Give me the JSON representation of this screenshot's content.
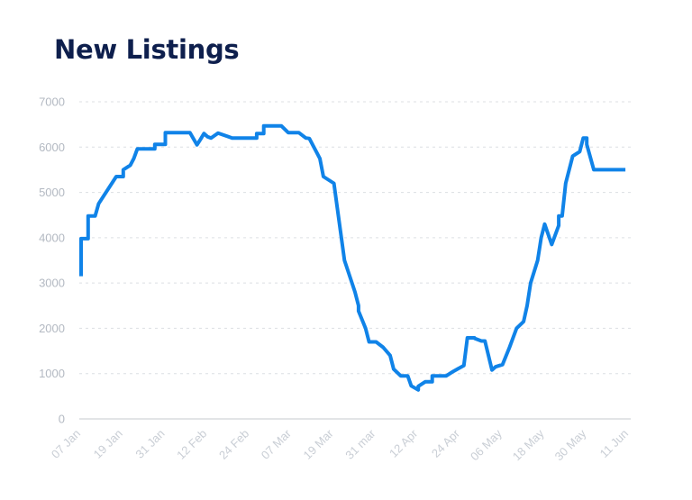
{
  "colors": {
    "line": "#1083e8",
    "grid": "#dcdfe3",
    "axis": "#c4c8ce",
    "title": "#0e1f4d",
    "tick_label": "#b3b9c2"
  },
  "chart_data": {
    "type": "line",
    "title": "New Listings",
    "xlabel": "",
    "ylabel": "",
    "ylim": [
      0,
      7000
    ],
    "yticks": [
      0,
      1000,
      2000,
      3000,
      4000,
      5000,
      6000,
      7000
    ],
    "grid": true,
    "legend": "none",
    "x_tick_labels": [
      "07 Jan",
      "19 Jan",
      "31 Jan",
      "12 Feb",
      "24 Feb",
      "07 Mar",
      "19 Mar",
      "31 mar",
      "12 Apr",
      "24 Apr",
      "06 May",
      "18 May",
      "30 May",
      "11 Jun"
    ],
    "series": [
      {
        "x": [
          "2024-01-07",
          "2024-01-07",
          "2024-01-09",
          "2024-01-09",
          "2024-01-11",
          "2024-01-12",
          "2024-01-17",
          "2024-01-19",
          "2024-01-19",
          "2024-01-21",
          "2024-01-22",
          "2024-01-23",
          "2024-01-28",
          "2024-01-28",
          "2024-01-29",
          "2024-01-31",
          "2024-01-31",
          "2024-02-07",
          "2024-02-09",
          "2024-02-10",
          "2024-02-11",
          "2024-02-12",
          "2024-02-13",
          "2024-02-15",
          "2024-02-19",
          "2024-02-26",
          "2024-02-26",
          "2024-02-28",
          "2024-02-28",
          "2024-03-04",
          "2024-03-06",
          "2024-03-09",
          "2024-03-11",
          "2024-03-12",
          "2024-03-15",
          "2024-03-16",
          "2024-03-19",
          "2024-03-22",
          "2024-03-25",
          "2024-03-26",
          "2024-03-26",
          "2024-03-28",
          "2024-03-29",
          "2024-03-31",
          "2024-04-02",
          "2024-04-04",
          "2024-04-05",
          "2024-04-07",
          "2024-04-09",
          "2024-04-10",
          "2024-04-12",
          "2024-04-12",
          "2024-04-14",
          "2024-04-16",
          "2024-04-16",
          "2024-04-17",
          "2024-04-17",
          "2024-04-20",
          "2024-04-22",
          "2024-04-25",
          "2024-04-26",
          "2024-04-28",
          "2024-04-28",
          "2024-04-30",
          "2024-05-01",
          "2024-05-03",
          "2024-05-04",
          "2024-05-06",
          "2024-05-08",
          "2024-05-10",
          "2024-05-12",
          "2024-05-13",
          "2024-05-14",
          "2024-05-16",
          "2024-05-17",
          "2024-05-18",
          "2024-05-20",
          "2024-05-22",
          "2024-05-22",
          "2024-05-23",
          "2024-05-24",
          "2024-05-26",
          "2024-05-28",
          "2024-05-29",
          "2024-05-30",
          "2024-05-30",
          "2024-06-01",
          "2024-06-01",
          "2024-06-03",
          "2024-06-04",
          "2024-06-06",
          "2024-06-08",
          "2024-06-09",
          "2024-06-10"
        ],
        "y": [
          3150,
          3980,
          3980,
          4480,
          4480,
          4750,
          5350,
          5350,
          5500,
          5600,
          5750,
          5960,
          5960,
          6060,
          6060,
          6060,
          6320,
          6320,
          6050,
          6170,
          6300,
          6230,
          6200,
          6310,
          6200,
          6200,
          6300,
          6300,
          6470,
          6470,
          6320,
          6320,
          6200,
          6190,
          5750,
          5350,
          5200,
          3500,
          2800,
          2500,
          2380,
          2000,
          1700,
          1700,
          1580,
          1400,
          1100,
          950,
          950,
          730,
          640,
          720,
          820,
          820,
          950,
          950,
          950,
          950,
          1050,
          1180,
          1790,
          1790,
          1780,
          1720,
          1720,
          1080,
          1150,
          1200,
          1580,
          2000,
          2150,
          2500,
          3000,
          3500,
          4000,
          4300,
          3850,
          4270,
          4480,
          4480,
          5200,
          5800,
          5900,
          6200,
          6200,
          6060,
          5500,
          5500,
          5500,
          5500,
          5500,
          5500,
          5500,
          5500
        ]
      }
    ]
  },
  "page": {
    "title": "New Listings"
  }
}
